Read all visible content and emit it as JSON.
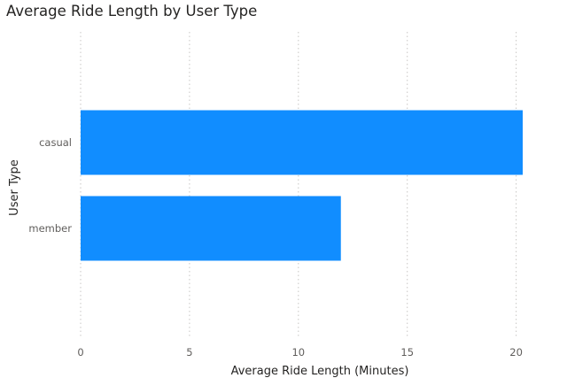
{
  "chart_data": {
    "type": "bar",
    "orientation": "horizontal",
    "title": "Average Ride Length by User Type",
    "xlabel": "Average Ride Length (Minutes)",
    "ylabel": "User Type",
    "categories": [
      "casual",
      "member"
    ],
    "values": [
      20.3,
      11.95
    ],
    "xlim": [
      0,
      20.3
    ],
    "xticks": [
      0,
      5,
      10,
      15,
      20
    ],
    "grid": true,
    "bar_color": "#118DFF",
    "grid_color": "#c8c6c4"
  }
}
